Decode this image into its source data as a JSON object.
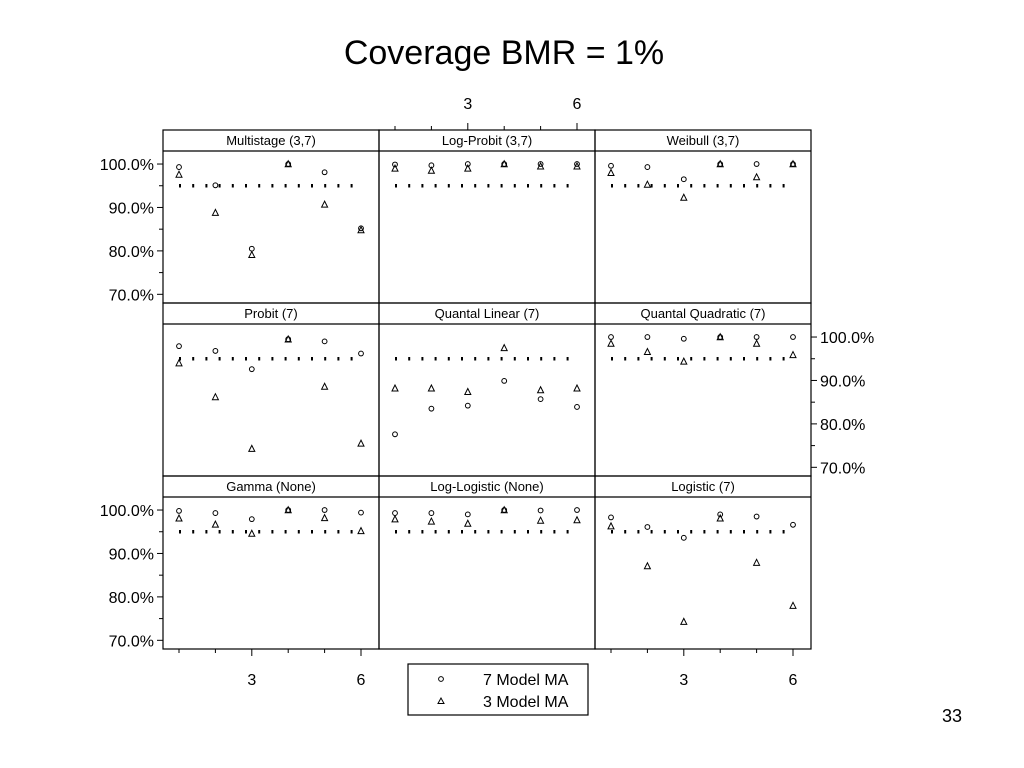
{
  "slide": {
    "title": "Coverage BMR = 1%",
    "page_number": "33"
  },
  "chart_data": {
    "type": "scatter",
    "title": "Coverage BMR = 1%",
    "x_ticks": [
      3,
      6
    ],
    "y_ticks": [
      "70.0%",
      "80.0%",
      "90.0%",
      "100.0%"
    ],
    "ylim": [
      68,
      103
    ],
    "xlim": [
      0.6,
      6.4
    ],
    "grid": false,
    "reference_line": {
      "y": 95.0,
      "style": "dotted"
    },
    "legend": {
      "position": "bottom-center",
      "entries": [
        {
          "marker": "circle",
          "label": "7 Model MA"
        },
        {
          "marker": "triangle",
          "label": "3 Model MA"
        }
      ]
    },
    "panels": [
      {
        "title": "Multistage (3,7)",
        "x": [
          1,
          2,
          3,
          4,
          5,
          6
        ],
        "series": [
          {
            "marker": "circle",
            "values": [
              99.3,
              95.1,
              80.5,
              100.0,
              98.1,
              85.2
            ]
          },
          {
            "marker": "triangle",
            "values": [
              97.6,
              88.8,
              79.1,
              100.0,
              90.7,
              84.8
            ]
          }
        ]
      },
      {
        "title": "Log-Probit (3,7)",
        "x": [
          1,
          2,
          3,
          4,
          5,
          6
        ],
        "series": [
          {
            "marker": "circle",
            "values": [
              99.9,
              99.7,
              100.0,
              100.0,
              100.0,
              100.0
            ]
          },
          {
            "marker": "triangle",
            "values": [
              99.0,
              98.5,
              99.0,
              100.0,
              99.5,
              99.5
            ]
          }
        ]
      },
      {
        "title": "Weibull (3,7)",
        "x": [
          1,
          2,
          3,
          4,
          5,
          6
        ],
        "series": [
          {
            "marker": "circle",
            "values": [
              99.6,
              99.3,
              96.5,
              100.0,
              100.0,
              100.0
            ]
          },
          {
            "marker": "triangle",
            "values": [
              98.0,
              95.3,
              92.3,
              100.0,
              97.0,
              100.0
            ]
          }
        ]
      },
      {
        "title": "Probit (7)",
        "x": [
          1,
          2,
          3,
          4,
          5,
          6
        ],
        "series": [
          {
            "marker": "circle",
            "values": [
              97.9,
              96.8,
              92.6,
              99.5,
              99.0,
              96.2
            ]
          },
          {
            "marker": "triangle",
            "values": [
              94.0,
              86.2,
              74.3,
              99.5,
              88.6,
              75.5
            ]
          }
        ]
      },
      {
        "title": "Quantal Linear (7)",
        "x": [
          1,
          2,
          3,
          4,
          5,
          6
        ],
        "series": [
          {
            "marker": "circle",
            "values": [
              77.6,
              83.5,
              84.2,
              89.9,
              85.7,
              83.9
            ]
          },
          {
            "marker": "triangle",
            "values": [
              88.2,
              88.2,
              87.4,
              97.5,
              87.8,
              88.2
            ]
          }
        ]
      },
      {
        "title": "Quantal Quadratic (7)",
        "x": [
          1,
          2,
          3,
          4,
          5,
          6
        ],
        "series": [
          {
            "marker": "circle",
            "values": [
              100.0,
              100.0,
              99.6,
              100.0,
              100.0,
              100.0
            ]
          },
          {
            "marker": "triangle",
            "values": [
              98.5,
              96.6,
              94.4,
              100.0,
              98.5,
              95.9
            ]
          }
        ]
      },
      {
        "title": "Gamma (None)",
        "x": [
          1,
          2,
          3,
          4,
          5,
          6
        ],
        "series": [
          {
            "marker": "circle",
            "values": [
              99.8,
              99.3,
              97.9,
              100.0,
              100.0,
              99.4
            ]
          },
          {
            "marker": "triangle",
            "values": [
              98.1,
              96.7,
              94.6,
              100.0,
              98.2,
              95.2
            ]
          }
        ]
      },
      {
        "title": "Log-Logistic (None)",
        "x": [
          1,
          2,
          3,
          4,
          5,
          6
        ],
        "series": [
          {
            "marker": "circle",
            "values": [
              99.3,
              99.3,
              99.0,
              100.0,
              99.9,
              100.0
            ]
          },
          {
            "marker": "triangle",
            "values": [
              97.9,
              97.4,
              96.9,
              100.0,
              97.6,
              97.7
            ]
          }
        ]
      },
      {
        "title": "Logistic (7)",
        "x": [
          1,
          2,
          3,
          4,
          5,
          6
        ],
        "series": [
          {
            "marker": "circle",
            "values": [
              98.3,
              96.1,
              93.6,
              99.0,
              98.5,
              96.6
            ]
          },
          {
            "marker": "triangle",
            "values": [
              96.3,
              87.1,
              74.3,
              98.1,
              87.9,
              78.0
            ]
          }
        ]
      }
    ]
  }
}
